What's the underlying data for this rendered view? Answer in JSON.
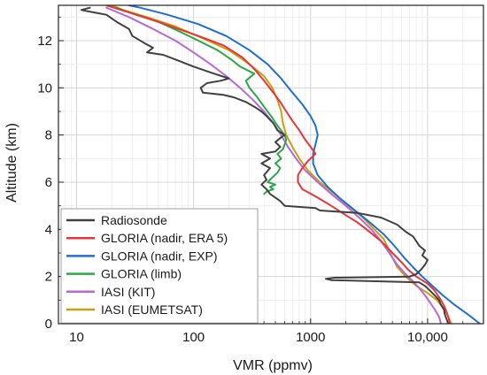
{
  "chart_data": {
    "type": "line",
    "xlabel": "VMR (ppmv)",
    "ylabel": "Altitude (km)",
    "x_scale": "log",
    "xlim": [
      7,
      30000
    ],
    "ylim": [
      0,
      13.5
    ],
    "x_ticks": [
      {
        "value": 10,
        "label": "10"
      },
      {
        "value": 100,
        "label": "100"
      },
      {
        "value": 1000,
        "label": "1000"
      },
      {
        "value": 10000,
        "label": "10,000"
      }
    ],
    "y_ticks": [
      {
        "value": 0,
        "label": "0"
      },
      {
        "value": 2,
        "label": "2"
      },
      {
        "value": 4,
        "label": "4"
      },
      {
        "value": 6,
        "label": "6"
      },
      {
        "value": 8,
        "label": "8"
      },
      {
        "value": 10,
        "label": "10"
      },
      {
        "value": 12,
        "label": "12"
      }
    ],
    "grid": true,
    "legend_position": "bottom-left",
    "series": [
      {
        "name": "Radiosonde",
        "color": "#404040",
        "points": [
          [
            15000,
            0.0
          ],
          [
            14500,
            0.2
          ],
          [
            14000,
            0.4
          ],
          [
            13800,
            0.6
          ],
          [
            13000,
            0.8
          ],
          [
            12500,
            1.0
          ],
          [
            11500,
            1.2
          ],
          [
            10500,
            1.4
          ],
          [
            9500,
            1.6
          ],
          [
            8500,
            1.75
          ],
          [
            1500,
            1.85
          ],
          [
            1350,
            1.9
          ],
          [
            1600,
            1.95
          ],
          [
            7000,
            2.0
          ],
          [
            8000,
            2.1
          ],
          [
            8800,
            2.3
          ],
          [
            9500,
            2.5
          ],
          [
            10000,
            2.7
          ],
          [
            9000,
            2.9
          ],
          [
            9500,
            3.1
          ],
          [
            8500,
            3.3
          ],
          [
            8000,
            3.5
          ],
          [
            7500,
            3.7
          ],
          [
            6500,
            3.9
          ],
          [
            5500,
            4.2
          ],
          [
            4000,
            4.5
          ],
          [
            2500,
            4.7
          ],
          [
            1200,
            4.8
          ],
          [
            1100,
            4.9
          ],
          [
            600,
            5.0
          ],
          [
            550,
            5.2
          ],
          [
            450,
            5.5
          ],
          [
            420,
            5.7
          ],
          [
            380,
            5.9
          ],
          [
            420,
            6.1
          ],
          [
            400,
            6.3
          ],
          [
            450,
            6.6
          ],
          [
            380,
            6.8
          ],
          [
            450,
            7.0
          ],
          [
            380,
            7.2
          ],
          [
            500,
            7.3
          ],
          [
            550,
            7.5
          ],
          [
            500,
            7.7
          ],
          [
            560,
            7.9
          ],
          [
            600,
            8.0
          ],
          [
            520,
            8.2
          ],
          [
            480,
            8.5
          ],
          [
            420,
            8.8
          ],
          [
            380,
            9.0
          ],
          [
            330,
            9.2
          ],
          [
            280,
            9.4
          ],
          [
            220,
            9.6
          ],
          [
            180,
            9.7
          ],
          [
            120,
            9.8
          ],
          [
            115,
            10.0
          ],
          [
            130,
            10.2
          ],
          [
            170,
            10.3
          ],
          [
            200,
            10.4
          ],
          [
            150,
            10.6
          ],
          [
            100,
            10.9
          ],
          [
            70,
            11.2
          ],
          [
            55,
            11.4
          ],
          [
            40,
            11.5
          ],
          [
            45,
            11.7
          ],
          [
            38,
            11.9
          ],
          [
            30,
            12.2
          ],
          [
            28,
            12.5
          ],
          [
            22,
            12.8
          ],
          [
            18,
            13.1
          ],
          [
            14,
            13.2
          ],
          [
            11,
            13.3
          ],
          [
            13,
            13.4
          ]
        ]
      },
      {
        "name": "GLORIA (nadir, ERA 5)",
        "color": "#e8353a",
        "points": [
          [
            15500,
            0.0
          ],
          [
            15000,
            0.3
          ],
          [
            14000,
            0.7
          ],
          [
            13000,
            1.0
          ],
          [
            11500,
            1.4
          ],
          [
            10000,
            1.7
          ],
          [
            8000,
            2.0
          ],
          [
            6800,
            2.3
          ],
          [
            6000,
            2.6
          ],
          [
            5000,
            3.0
          ],
          [
            4000,
            3.5
          ],
          [
            3000,
            4.0
          ],
          [
            2500,
            4.3
          ],
          [
            2000,
            4.6
          ],
          [
            1500,
            5.0
          ],
          [
            1100,
            5.4
          ],
          [
            850,
            5.7
          ],
          [
            780,
            6.0
          ],
          [
            780,
            6.3
          ],
          [
            850,
            6.6
          ],
          [
            950,
            6.9
          ],
          [
            1100,
            7.2
          ],
          [
            1000,
            7.5
          ],
          [
            900,
            7.8
          ],
          [
            800,
            8.2
          ],
          [
            700,
            8.6
          ],
          [
            620,
            9.0
          ],
          [
            550,
            9.4
          ],
          [
            480,
            9.8
          ],
          [
            400,
            10.3
          ],
          [
            330,
            10.8
          ],
          [
            260,
            11.3
          ],
          [
            180,
            11.8
          ],
          [
            110,
            12.2
          ],
          [
            65,
            12.6
          ],
          [
            38,
            13.0
          ],
          [
            24,
            13.3
          ],
          [
            18,
            13.5
          ]
        ]
      },
      {
        "name": "GLORIA (nadir, EXP)",
        "color": "#1f6fd1",
        "points": [
          [
            28000,
            0.0
          ],
          [
            22000,
            0.4
          ],
          [
            17000,
            0.8
          ],
          [
            13500,
            1.2
          ],
          [
            11000,
            1.6
          ],
          [
            9000,
            2.0
          ],
          [
            7500,
            2.4
          ],
          [
            6300,
            2.8
          ],
          [
            5200,
            3.3
          ],
          [
            4200,
            3.8
          ],
          [
            3200,
            4.3
          ],
          [
            2400,
            4.8
          ],
          [
            1800,
            5.3
          ],
          [
            1400,
            5.8
          ],
          [
            1150,
            6.3
          ],
          [
            1050,
            6.8
          ],
          [
            1050,
            7.2
          ],
          [
            1100,
            7.6
          ],
          [
            1150,
            8.0
          ],
          [
            1100,
            8.4
          ],
          [
            1000,
            8.8
          ],
          [
            850,
            9.3
          ],
          [
            700,
            9.8
          ],
          [
            560,
            10.4
          ],
          [
            430,
            11.0
          ],
          [
            300,
            11.6
          ],
          [
            190,
            12.2
          ],
          [
            110,
            12.7
          ],
          [
            60,
            13.1
          ],
          [
            35,
            13.4
          ],
          [
            28,
            13.5
          ]
        ]
      },
      {
        "name": "GLORIA (limb)",
        "color": "#2ca84a",
        "points": [
          [
            400,
            5.5
          ],
          [
            420,
            5.6
          ],
          [
            480,
            5.7
          ],
          [
            450,
            5.8
          ],
          [
            500,
            5.9
          ],
          [
            430,
            6.0
          ],
          [
            470,
            6.2
          ],
          [
            520,
            6.4
          ],
          [
            550,
            6.6
          ],
          [
            500,
            6.8
          ],
          [
            560,
            7.0
          ],
          [
            520,
            7.2
          ],
          [
            580,
            7.4
          ],
          [
            600,
            7.6
          ],
          [
            620,
            7.8
          ],
          [
            600,
            8.0
          ],
          [
            520,
            8.4
          ],
          [
            460,
            8.8
          ],
          [
            400,
            9.2
          ],
          [
            350,
            9.6
          ],
          [
            300,
            10.0
          ],
          [
            280,
            10.3
          ],
          [
            330,
            10.6
          ],
          [
            250,
            10.9
          ],
          [
            210,
            11.2
          ],
          [
            160,
            11.6
          ],
          [
            110,
            12.0
          ],
          [
            75,
            12.4
          ],
          [
            50,
            12.8
          ],
          [
            32,
            13.1
          ],
          [
            22,
            13.4
          ]
        ]
      },
      {
        "name": "IASI (KIT)",
        "color": "#b768d8",
        "points": [
          [
            13000,
            0.0
          ],
          [
            12500,
            0.3
          ],
          [
            11500,
            0.6
          ],
          [
            10500,
            0.9
          ],
          [
            9500,
            1.2
          ],
          [
            8500,
            1.5
          ],
          [
            7500,
            1.8
          ],
          [
            6500,
            2.1
          ],
          [
            5500,
            2.5
          ],
          [
            4700,
            3.0
          ],
          [
            4000,
            3.5
          ],
          [
            3300,
            4.0
          ],
          [
            2600,
            4.5
          ],
          [
            2000,
            5.0
          ],
          [
            1500,
            5.5
          ],
          [
            1150,
            6.0
          ],
          [
            900,
            6.5
          ],
          [
            750,
            7.0
          ],
          [
            640,
            7.5
          ],
          [
            560,
            8.0
          ],
          [
            480,
            8.5
          ],
          [
            400,
            9.0
          ],
          [
            320,
            9.5
          ],
          [
            250,
            10.0
          ],
          [
            190,
            10.5
          ],
          [
            140,
            11.0
          ],
          [
            100,
            11.5
          ],
          [
            70,
            12.0
          ],
          [
            45,
            12.5
          ],
          [
            28,
            13.0
          ],
          [
            18,
            13.4
          ]
        ]
      },
      {
        "name": "IASI (EUMETSAT)",
        "color": "#c8a010",
        "points": [
          [
            16000,
            0.0
          ],
          [
            15000,
            0.3
          ],
          [
            14000,
            0.6
          ],
          [
            12000,
            1.0
          ],
          [
            10000,
            1.3
          ],
          [
            8000,
            1.6
          ],
          [
            6500,
            2.0
          ],
          [
            5500,
            2.4
          ],
          [
            5000,
            2.8
          ],
          [
            4600,
            3.2
          ],
          [
            4200,
            3.6
          ],
          [
            3500,
            4.0
          ],
          [
            2800,
            4.5
          ],
          [
            2100,
            5.0
          ],
          [
            1600,
            5.5
          ],
          [
            1200,
            6.0
          ],
          [
            950,
            6.5
          ],
          [
            800,
            7.0
          ],
          [
            700,
            7.5
          ],
          [
            620,
            8.0
          ],
          [
            580,
            8.5
          ],
          [
            560,
            9.0
          ],
          [
            520,
            9.5
          ],
          [
            470,
            10.0
          ],
          [
            400,
            10.5
          ],
          [
            300,
            11.0
          ],
          [
            200,
            11.6
          ],
          [
            120,
            12.1
          ],
          [
            70,
            12.6
          ],
          [
            40,
            13.0
          ],
          [
            25,
            13.3
          ],
          [
            20,
            13.5
          ]
        ]
      }
    ]
  }
}
